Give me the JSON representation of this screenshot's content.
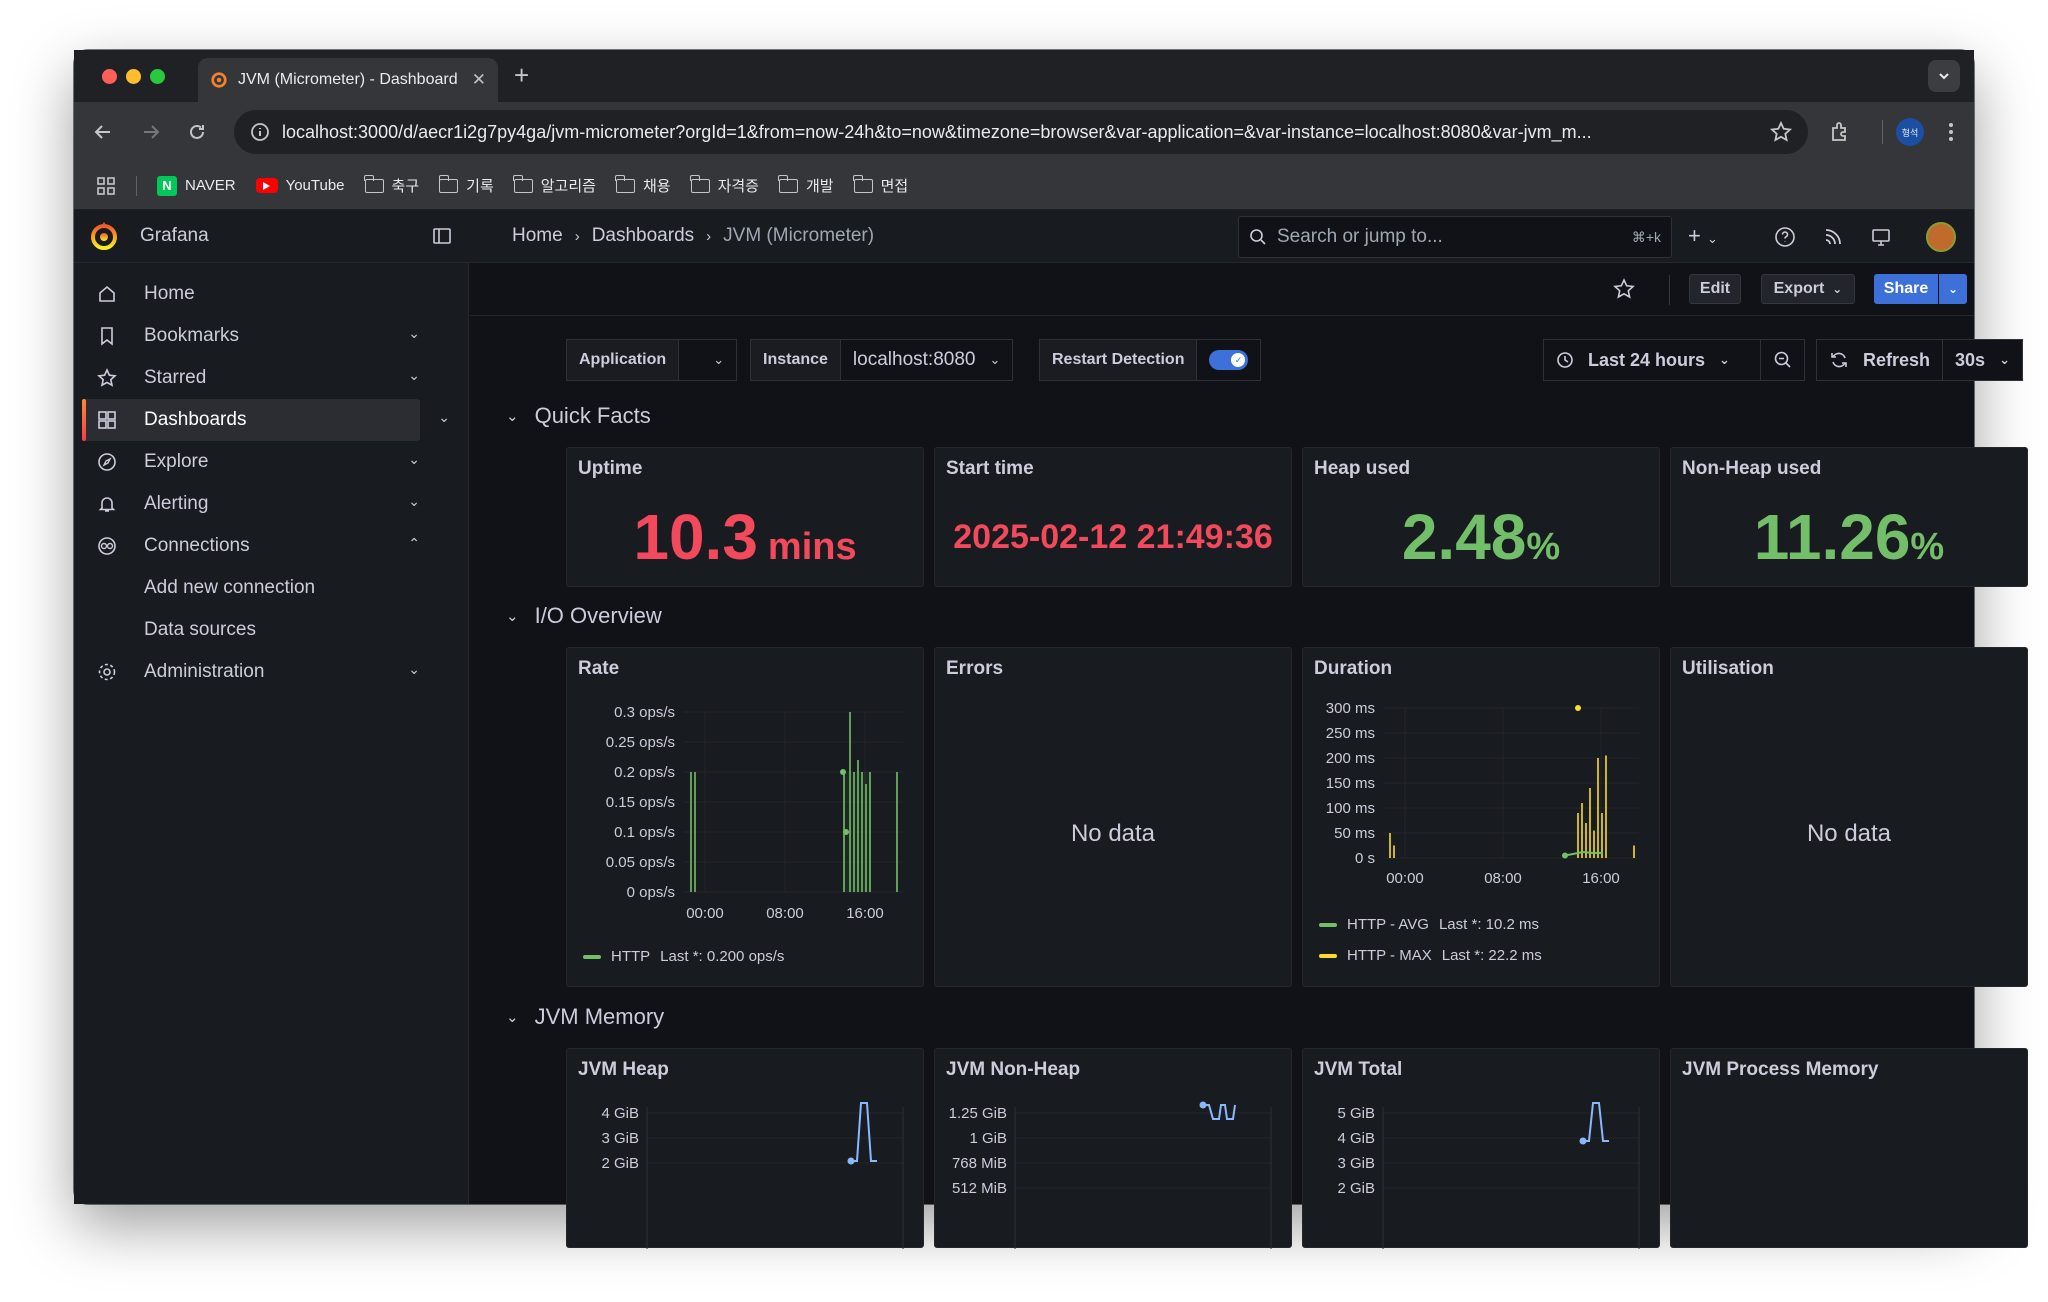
{
  "browser": {
    "tab_title": "JVM (Micrometer) - Dashboard",
    "url": "localhost:3000/d/aecr1i2g7py4ga/jvm-micrometer?orgId=1&from=now-24h&to=now&timezone=browser&var-application=&var-instance=localhost:8080&var-jvm_m...",
    "profile": "형석",
    "bookmarks": [
      "NAVER",
      "YouTube",
      "축구",
      "기록",
      "알고리즘",
      "채용",
      "자격증",
      "개발",
      "면접"
    ]
  },
  "grafana": {
    "brand": "Grafana",
    "breadcrumb": [
      "Home",
      "Dashboards",
      "JVM (Micrometer)"
    ],
    "search_placeholder": "Search or jump to...",
    "search_shortcut": "⌘+k",
    "nav": [
      {
        "label": "Home",
        "icon": "home-icon"
      },
      {
        "label": "Bookmarks",
        "icon": "bookmark-icon"
      },
      {
        "label": "Starred",
        "icon": "star-icon"
      },
      {
        "label": "Dashboards",
        "icon": "dashboards-icon"
      },
      {
        "label": "Explore",
        "icon": "compass-icon"
      },
      {
        "label": "Alerting",
        "icon": "bell-icon"
      },
      {
        "label": "Connections",
        "icon": "connections-icon"
      },
      {
        "label": "Add new connection"
      },
      {
        "label": "Data sources"
      },
      {
        "label": "Administration",
        "icon": "gear-icon"
      }
    ],
    "actions": {
      "edit": "Edit",
      "export": "Export",
      "share": "Share"
    },
    "variables": {
      "application_label": "Application",
      "application_value": "",
      "instance_label": "Instance",
      "instance_value": "localhost:8080",
      "restart_label": "Restart Detection",
      "restart_enabled": true
    },
    "time": {
      "range": "Last 24 hours",
      "refresh": "Refresh",
      "interval": "30s"
    },
    "rows": {
      "quick_facts": "Quick Facts",
      "io": "I/O Overview",
      "jvm_memory": "JVM Memory"
    },
    "stats": [
      {
        "title": "Uptime",
        "value": "10.3",
        "unit": "mins",
        "color": "#f2495c"
      },
      {
        "title": "Start time",
        "value": "2025-02-12 21:49:36",
        "unit": "",
        "color": "#f2495c"
      },
      {
        "title": "Heap used",
        "value": "2.48",
        "unit": "%",
        "color": "#73bf69"
      },
      {
        "title": "Non-Heap used",
        "value": "11.26",
        "unit": "%",
        "color": "#73bf69"
      }
    ],
    "io_panels": {
      "rate_title": "Rate",
      "errors_title": "Errors",
      "duration_title": "Duration",
      "utilisation_title": "Utilisation",
      "no_data": "No data",
      "rate_legend": "HTTP",
      "rate_last": "Last *: 0.200 ops/s",
      "dur_legend_avg": "HTTP - AVG",
      "dur_last_avg": "Last *: 10.2 ms",
      "dur_legend_max": "HTTP - MAX",
      "dur_last_max": "Last *: 22.2 ms"
    },
    "memory_panels": {
      "heap_title": "JVM Heap",
      "nonheap_title": "JVM Non-Heap",
      "total_title": "JVM Total",
      "process_title": "JVM Process Memory"
    }
  },
  "chart_data": [
    {
      "type": "line",
      "title": "Rate",
      "x_ticks": [
        "00:00",
        "08:00",
        "16:00"
      ],
      "y_ticks": [
        "0 ops/s",
        "0.05 ops/s",
        "0.1 ops/s",
        "0.15 ops/s",
        "0.2 ops/s",
        "0.25 ops/s",
        "0.3 ops/s"
      ],
      "ylim": [
        0,
        0.3
      ],
      "series": [
        {
          "name": "HTTP",
          "color": "#73bf69",
          "last": 0.2
        }
      ]
    },
    {
      "type": "line",
      "title": "Duration",
      "x_ticks": [
        "00:00",
        "08:00",
        "16:00"
      ],
      "y_ticks": [
        "0 s",
        "50 ms",
        "100 ms",
        "150 ms",
        "200 ms",
        "250 ms",
        "300 ms"
      ],
      "ylim": [
        0,
        300
      ],
      "series": [
        {
          "name": "HTTP - AVG",
          "color": "#73bf69",
          "last": 10.2
        },
        {
          "name": "HTTP - MAX",
          "color": "#fade2a",
          "last": 22.2
        }
      ]
    },
    {
      "type": "line",
      "title": "JVM Heap",
      "y_ticks": [
        "4 GiB",
        "3 GiB",
        "2 GiB"
      ]
    },
    {
      "type": "line",
      "title": "JVM Non-Heap",
      "y_ticks": [
        "1.25 GiB",
        "1 GiB",
        "768 MiB",
        "512 MiB"
      ]
    },
    {
      "type": "line",
      "title": "JVM Total",
      "y_ticks": [
        "5 GiB",
        "4 GiB",
        "3 GiB",
        "2 GiB"
      ]
    }
  ]
}
